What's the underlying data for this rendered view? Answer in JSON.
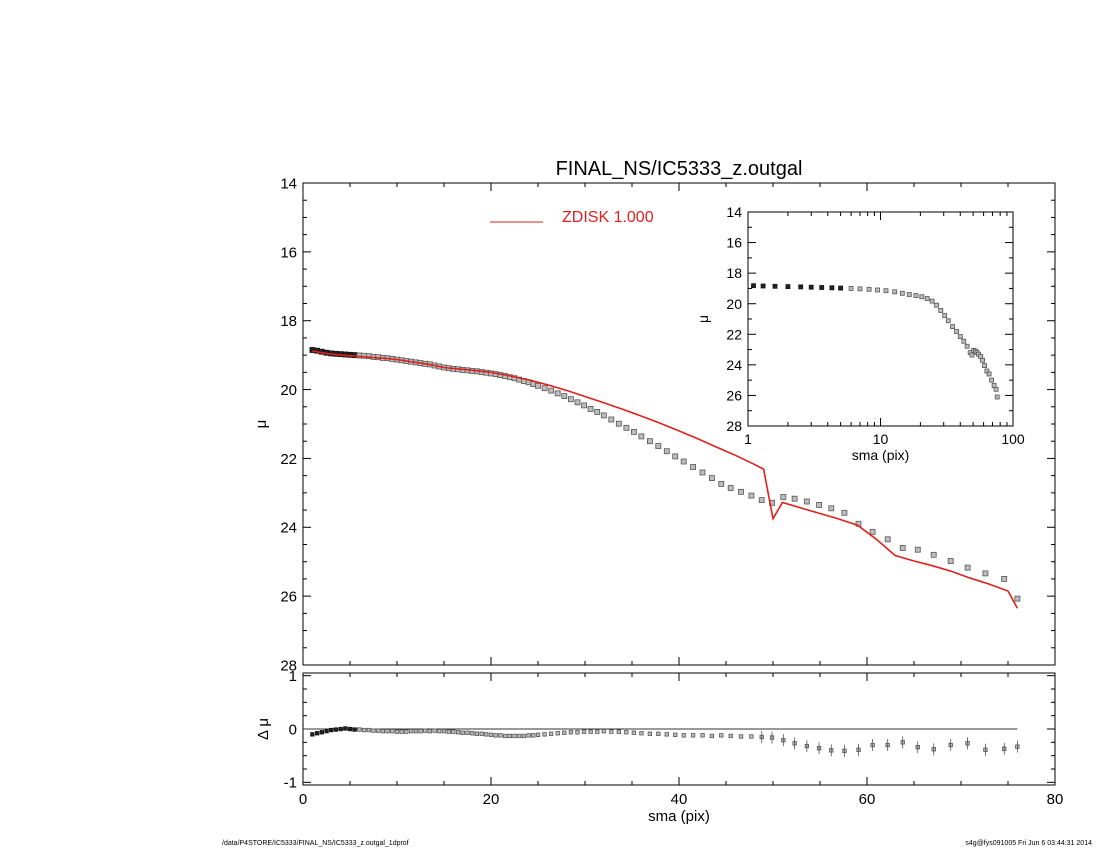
{
  "footer": {
    "left": "/data/P4STORE/IC5333/FINAL_NS/IC5333_z.outgal_1dprof",
    "right": "s4g@fys091005  Fri Jun  6 03:44:31 2014"
  },
  "colors": {
    "model": "#e0201c",
    "points": "#555555",
    "axes": "#000000"
  },
  "chart_data": [
    {
      "id": "main",
      "type": "scatter",
      "title": "FINAL_NS/IC5333_z.outgal",
      "xlabel": "",
      "ylabel": "μ",
      "xlim": [
        0,
        80
      ],
      "ylim": [
        28,
        14
      ],
      "inverted_y": true,
      "x_ticks": [
        0,
        20,
        40,
        60,
        80
      ],
      "y_ticks": [
        14,
        16,
        18,
        20,
        22,
        24,
        26,
        28
      ],
      "legend": {
        "label": "ZDISK  1.000",
        "placement": "top"
      },
      "series": [
        {
          "kind": "points",
          "x": [
            1.0,
            1.5,
            2.0,
            2.5,
            3.0,
            3.5,
            4.0,
            4.5,
            5.0,
            5.5,
            6.0,
            6.5,
            7.0,
            7.5,
            8.0,
            8.5,
            9.0,
            9.5,
            10.0,
            10.5,
            11.0,
            11.5,
            12.0,
            12.5,
            13.0,
            13.5,
            14.0,
            14.5,
            15.0,
            15.5,
            16.0,
            16.5,
            17.0,
            17.5,
            18.0,
            18.5,
            19.0,
            19.5,
            20.0,
            20.5,
            21.0,
            21.5,
            22.0,
            22.5,
            23.0,
            23.5,
            24.0,
            24.5,
            25.0,
            25.7,
            26.4,
            27.1,
            27.8,
            28.5,
            29.2,
            29.9,
            30.6,
            31.3,
            32.0,
            32.8,
            33.6,
            34.4,
            35.2,
            36.0,
            36.9,
            37.8,
            38.7,
            39.6,
            40.5,
            41.5,
            42.5,
            43.5,
            44.5,
            45.5,
            46.6,
            47.7,
            48.8,
            49.9,
            51.1,
            52.3,
            53.6,
            54.9,
            56.2,
            57.6,
            59.1,
            60.6,
            62.2,
            63.8,
            65.4,
            67.1,
            68.9,
            70.7,
            72.6,
            74.6,
            76.0
          ],
          "y": [
            18.85,
            18.87,
            18.9,
            18.93,
            18.95,
            18.96,
            18.97,
            18.98,
            18.99,
            19.0,
            19.01,
            19.02,
            19.03,
            19.05,
            19.06,
            19.08,
            19.09,
            19.11,
            19.13,
            19.15,
            19.17,
            19.19,
            19.21,
            19.23,
            19.25,
            19.27,
            19.3,
            19.33,
            19.36,
            19.38,
            19.4,
            19.41,
            19.43,
            19.44,
            19.46,
            19.47,
            19.49,
            19.51,
            19.53,
            19.55,
            19.58,
            19.61,
            19.64,
            19.67,
            19.71,
            19.75,
            19.79,
            19.84,
            19.89,
            19.96,
            20.03,
            20.11,
            20.19,
            20.28,
            20.37,
            20.46,
            20.56,
            20.65,
            20.75,
            20.87,
            20.99,
            21.11,
            21.23,
            21.36,
            21.5,
            21.64,
            21.79,
            21.94,
            22.09,
            22.25,
            22.41,
            22.57,
            22.74,
            22.86,
            22.97,
            23.08,
            23.21,
            23.29,
            23.12,
            23.17,
            23.25,
            23.35,
            23.45,
            23.58,
            23.9,
            24.13,
            24.35,
            24.6,
            24.65,
            24.8,
            24.98,
            25.17,
            25.34,
            25.5,
            26.07
          ]
        },
        {
          "kind": "line",
          "name": "ZDISK  1.000",
          "x": [
            1.0,
            2.0,
            3.0,
            4.0,
            5.0,
            6.0,
            7.0,
            8.0,
            9.0,
            10.0,
            11.0,
            12.0,
            13.0,
            14.0,
            15.0,
            16.0,
            17.0,
            18.0,
            19.0,
            20.0,
            21.0,
            22.0,
            23.0,
            24.0,
            25.0,
            26.0,
            27.0,
            28.0,
            29.0,
            30.0,
            32.0,
            34.0,
            36.0,
            38.0,
            40.0,
            42.0,
            44.0,
            46.0,
            48.0,
            49.0,
            50.0,
            51.0,
            53.0,
            55.0,
            57.0,
            59.0,
            61.0,
            63.0,
            65.0,
            67.0,
            69.0,
            71.0,
            73.0,
            75.0,
            76.0
          ],
          "y": [
            18.88,
            18.93,
            18.97,
            19.0,
            19.02,
            19.04,
            19.06,
            19.08,
            19.1,
            19.13,
            19.17,
            19.21,
            19.25,
            19.3,
            19.36,
            19.39,
            19.41,
            19.44,
            19.47,
            19.5,
            19.55,
            19.6,
            19.66,
            19.72,
            19.79,
            19.86,
            19.94,
            20.02,
            20.11,
            20.2,
            20.38,
            20.57,
            20.77,
            20.98,
            21.2,
            21.43,
            21.67,
            21.91,
            22.17,
            22.31,
            23.75,
            23.28,
            23.44,
            23.6,
            23.76,
            23.94,
            24.35,
            24.82,
            24.98,
            25.12,
            25.28,
            25.48,
            25.65,
            25.85,
            26.35
          ]
        }
      ]
    },
    {
      "id": "inset",
      "type": "scatter",
      "title": "",
      "xlabel": "sma (pix)",
      "ylabel": "μ",
      "xscale": "log",
      "xlim": [
        1,
        100
      ],
      "ylim": [
        28,
        14
      ],
      "inverted_y": true,
      "x_tick_labels": [
        "1",
        "10",
        "100"
      ],
      "y_ticks": [
        14,
        16,
        18,
        20,
        22,
        24,
        26,
        28
      ],
      "series": [
        {
          "kind": "points",
          "x": [
            1.1,
            1.3,
            1.6,
            2.0,
            2.5,
            3.0,
            3.6,
            4.3,
            5.0,
            6.0,
            7.0,
            8.2,
            9.5,
            11.0,
            12.8,
            14.6,
            16.5,
            18.5,
            20.5,
            22.5,
            24.5,
            26.5,
            28.5,
            30.5,
            32.5,
            35.0,
            37.5,
            40.0,
            42.5,
            45.0,
            47.5,
            49.0,
            50.5,
            52.0,
            53.5,
            55.0,
            57.0,
            59.0,
            61.0,
            63.5,
            66.0,
            69.0,
            72.0,
            74.5,
            76.0
          ],
          "y": [
            18.82,
            18.84,
            18.86,
            18.88,
            18.9,
            18.92,
            18.94,
            18.96,
            18.98,
            19.0,
            19.03,
            19.06,
            19.1,
            19.15,
            19.22,
            19.32,
            19.4,
            19.47,
            19.55,
            19.66,
            19.83,
            20.1,
            20.44,
            20.78,
            21.12,
            21.5,
            21.82,
            22.15,
            22.45,
            22.78,
            23.2,
            23.36,
            23.05,
            23.1,
            23.2,
            23.3,
            23.45,
            23.7,
            24.05,
            24.4,
            24.6,
            25.0,
            25.35,
            25.6,
            26.1
          ]
        }
      ]
    },
    {
      "id": "residual",
      "type": "scatter",
      "title": "",
      "xlabel": "sma (pix)",
      "ylabel": "Δ μ",
      "xlim": [
        0,
        80
      ],
      "ylim": [
        -1.05,
        1.05
      ],
      "x_ticks": [
        0,
        20,
        40,
        60,
        80
      ],
      "y_ticks": [
        -1,
        0,
        1
      ],
      "zero_line": true,
      "series": [
        {
          "kind": "points",
          "x": [
            1.0,
            1.5,
            2.0,
            2.5,
            3.0,
            3.5,
            4.0,
            4.5,
            5.0,
            5.5,
            6.0,
            6.5,
            7.0,
            7.5,
            8.0,
            8.5,
            9.0,
            9.5,
            10.0,
            10.5,
            11.0,
            11.5,
            12.0,
            12.5,
            13.0,
            13.5,
            14.0,
            14.5,
            15.0,
            15.5,
            16.0,
            16.5,
            17.0,
            17.5,
            18.0,
            18.5,
            19.0,
            19.5,
            20.0,
            20.5,
            21.0,
            21.5,
            22.0,
            22.5,
            23.0,
            23.5,
            24.0,
            24.5,
            25.0,
            25.7,
            26.4,
            27.1,
            27.8,
            28.5,
            29.2,
            29.9,
            30.6,
            31.3,
            32.0,
            32.8,
            33.6,
            34.4,
            35.2,
            36.0,
            36.9,
            37.8,
            38.7,
            39.6,
            40.5,
            41.5,
            42.5,
            43.5,
            44.5,
            45.5,
            46.6,
            47.7,
            48.8,
            49.9,
            51.1,
            52.3,
            53.6,
            54.9,
            56.2,
            57.6,
            59.1,
            60.6,
            62.2,
            63.8,
            65.4,
            67.1,
            68.9,
            70.7,
            72.6,
            74.6,
            76.0
          ],
          "y": [
            -0.1,
            -0.08,
            -0.06,
            -0.04,
            -0.02,
            -0.01,
            0.0,
            0.01,
            0.0,
            -0.01,
            -0.01,
            -0.02,
            -0.02,
            -0.03,
            -0.03,
            -0.04,
            -0.04,
            -0.04,
            -0.05,
            -0.05,
            -0.05,
            -0.04,
            -0.04,
            -0.04,
            -0.03,
            -0.04,
            -0.03,
            -0.04,
            -0.04,
            -0.05,
            -0.05,
            -0.06,
            -0.07,
            -0.07,
            -0.08,
            -0.09,
            -0.09,
            -0.1,
            -0.11,
            -0.12,
            -0.12,
            -0.13,
            -0.13,
            -0.13,
            -0.13,
            -0.13,
            -0.12,
            -0.12,
            -0.11,
            -0.1,
            -0.09,
            -0.08,
            -0.07,
            -0.06,
            -0.06,
            -0.05,
            -0.05,
            -0.05,
            -0.04,
            -0.05,
            -0.05,
            -0.06,
            -0.07,
            -0.08,
            -0.09,
            -0.09,
            -0.1,
            -0.11,
            -0.12,
            -0.12,
            -0.12,
            -0.13,
            -0.12,
            -0.13,
            -0.14,
            -0.14,
            -0.15,
            -0.16,
            -0.21,
            -0.27,
            -0.32,
            -0.36,
            -0.4,
            -0.41,
            -0.39,
            -0.3,
            -0.3,
            -0.25,
            -0.34,
            -0.38,
            -0.3,
            -0.27,
            -0.39,
            -0.37,
            -0.33
          ]
        }
      ]
    }
  ]
}
